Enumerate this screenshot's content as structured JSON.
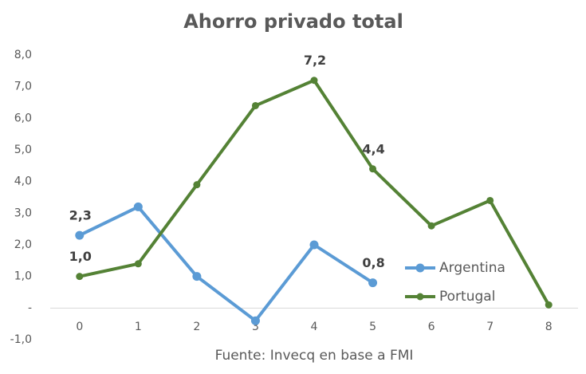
{
  "chart_data": {
    "type": "line",
    "title": "Ahorro privado total",
    "note": "Fuente: Invecq en base a FMI",
    "categories": [
      "0",
      "1",
      "2",
      "3",
      "4",
      "5",
      "6",
      "7",
      "8"
    ],
    "series": [
      {
        "name": "Argentina",
        "color": "#5b9bd5",
        "values": [
          2.3,
          3.2,
          1.0,
          -0.4,
          2.0,
          0.8,
          null,
          null,
          null
        ],
        "value_labels": [
          "2,3",
          null,
          null,
          null,
          null,
          "0,8",
          null,
          null,
          null
        ]
      },
      {
        "name": "Portugal",
        "color": "#548235",
        "values": [
          1.0,
          1.4,
          3.9,
          6.4,
          7.2,
          4.4,
          2.6,
          3.4,
          0.1
        ],
        "value_labels": [
          "1,0",
          null,
          null,
          null,
          "7,2",
          "4,4",
          null,
          null,
          null
        ]
      }
    ],
    "ylim": [
      -1,
      8
    ],
    "yticks": [
      {
        "value": 8,
        "label": "8,0"
      },
      {
        "value": 7,
        "label": "7,0"
      },
      {
        "value": 6,
        "label": "6,0"
      },
      {
        "value": 5,
        "label": "5,0"
      },
      {
        "value": 4,
        "label": "4,0"
      },
      {
        "value": 3,
        "label": "3,0"
      },
      {
        "value": 2,
        "label": "2,0"
      },
      {
        "value": 1,
        "label": "1,0"
      },
      {
        "value": 0,
        "label": "-"
      },
      {
        "value": -1,
        "label": "-1,0"
      }
    ],
    "grid": false,
    "legend": "lower right"
  }
}
